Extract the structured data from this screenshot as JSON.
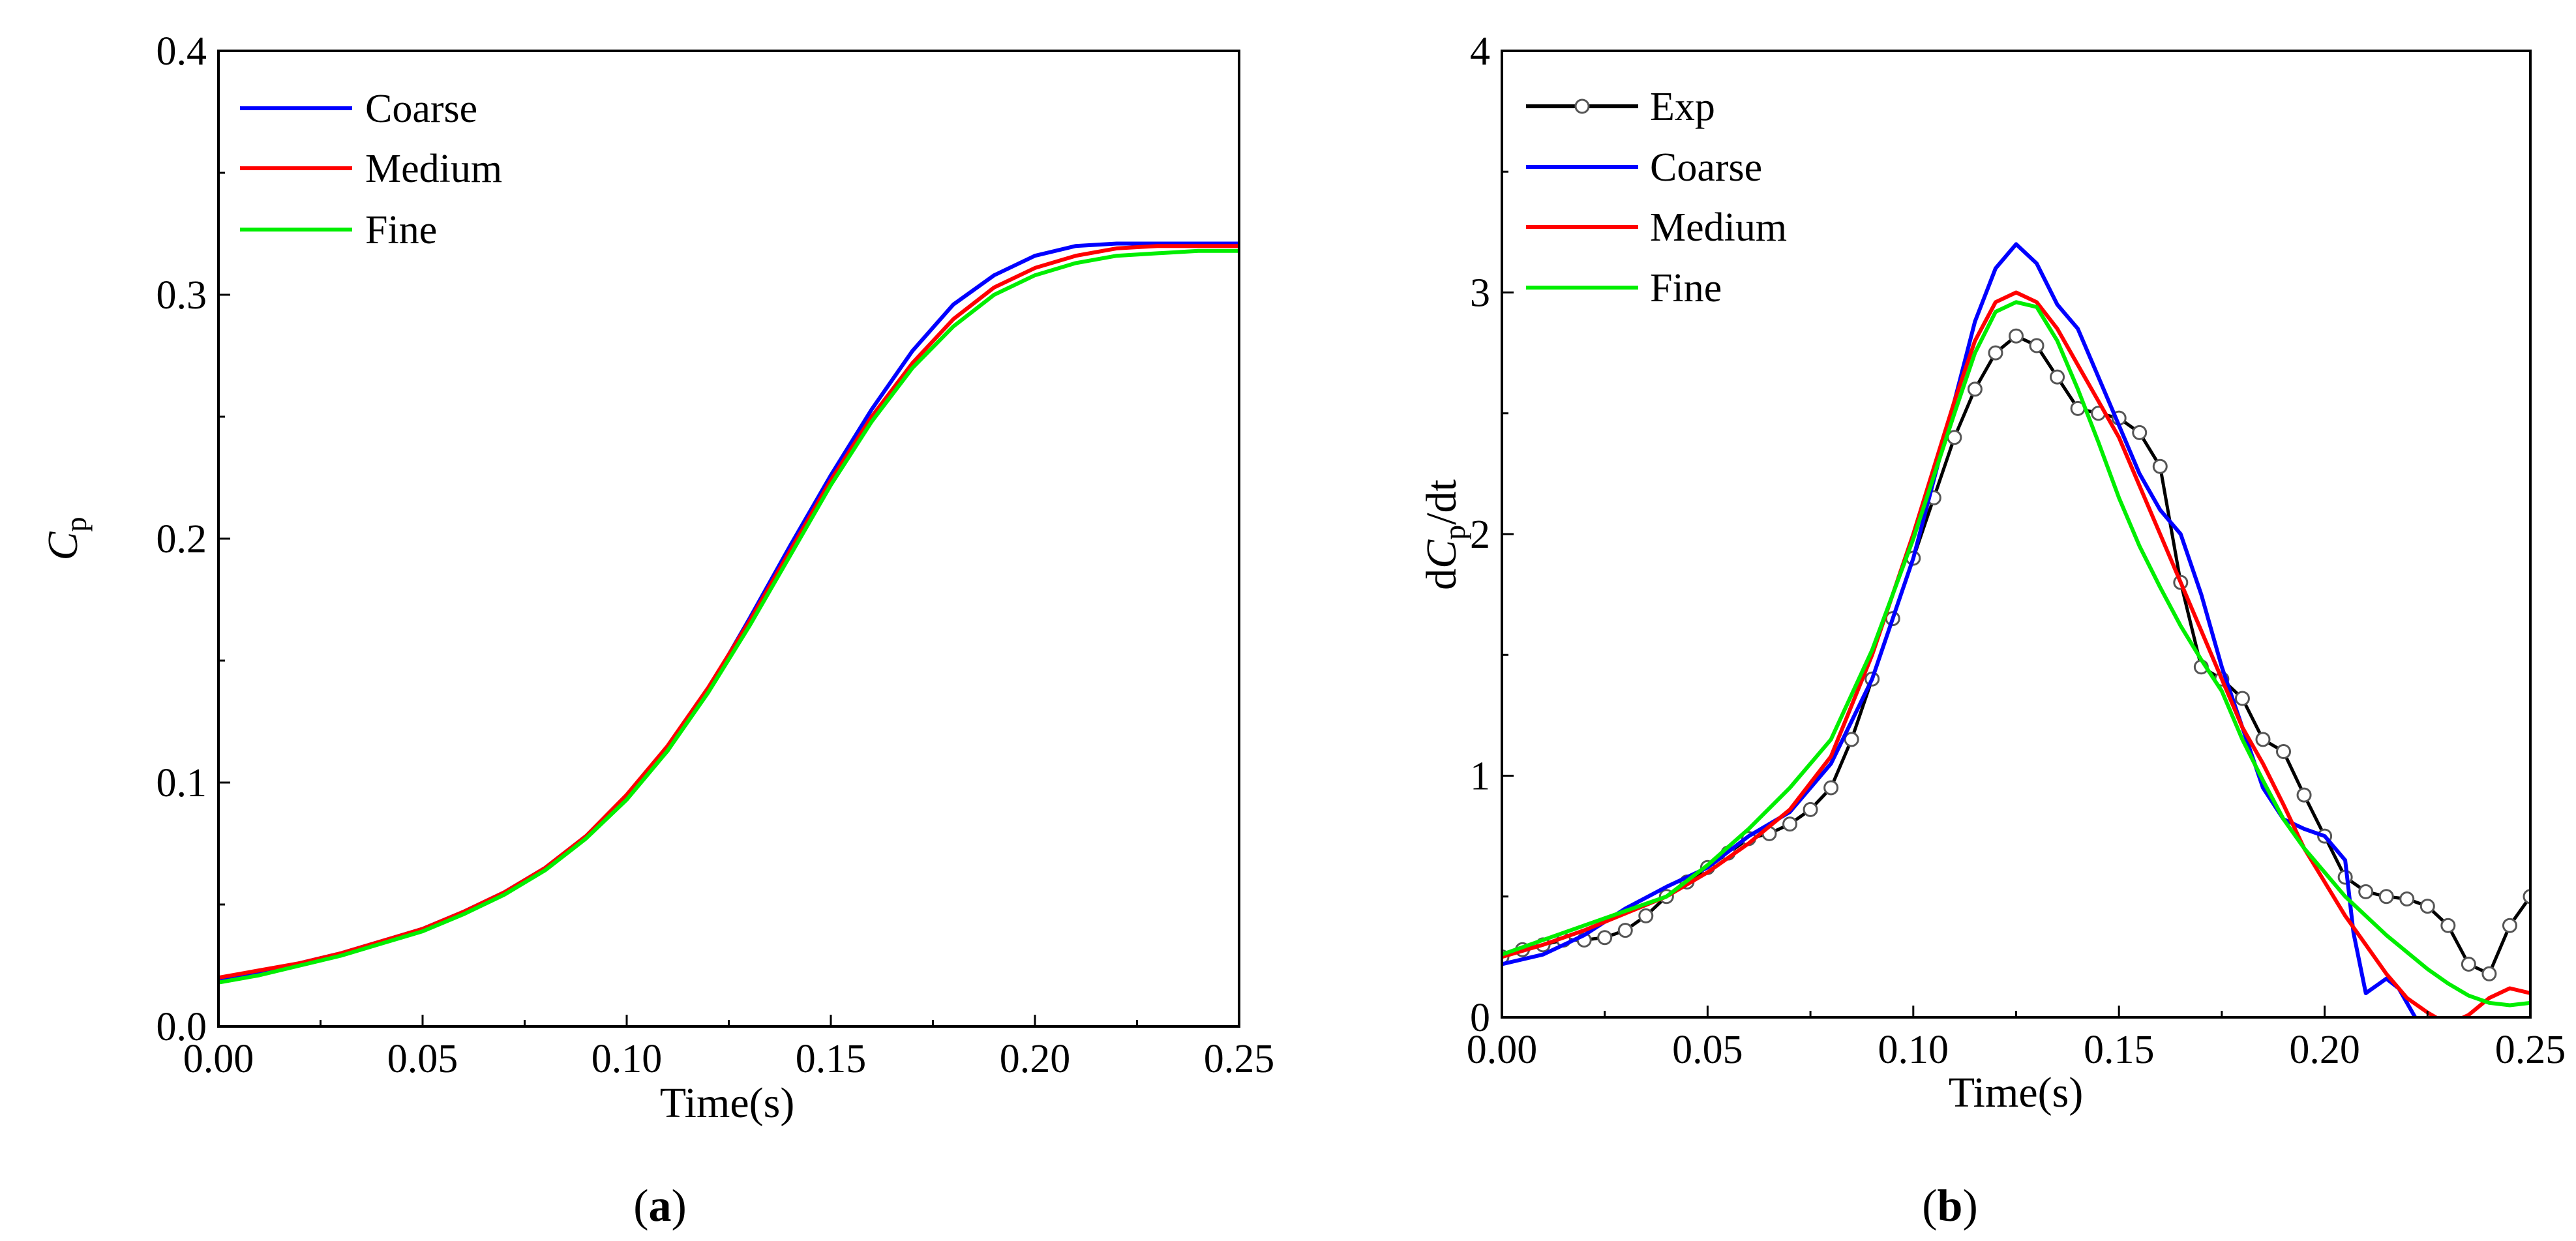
{
  "chart_data": [
    {
      "type": "line",
      "panel_label": {
        "open": "(",
        "letter": "a",
        "close": ")"
      },
      "xlabel": "Time(s)",
      "ylabel": {
        "main": "C",
        "sub": "p"
      },
      "xlim": [
        0,
        0.25
      ],
      "ylim": [
        0,
        0.4
      ],
      "xticks": [
        0,
        0.05,
        0.1,
        0.15,
        0.2,
        0.25
      ],
      "xtick_labels": [
        "0.00",
        "0.05",
        "0.10",
        "0.15",
        "0.20",
        "0.25"
      ],
      "yticks": [
        0,
        0.1,
        0.2,
        0.3,
        0.4
      ],
      "ytick_labels": [
        "0.0",
        "0.1",
        "0.2",
        "0.3",
        "0.4"
      ],
      "grid": false,
      "legend_position": "top-left",
      "series": [
        {
          "name": "Coarse",
          "color": "#0000ff",
          "x": [
            0,
            0.01,
            0.02,
            0.03,
            0.04,
            0.05,
            0.06,
            0.07,
            0.08,
            0.09,
            0.1,
            0.11,
            0.12,
            0.13,
            0.14,
            0.15,
            0.16,
            0.17,
            0.18,
            0.19,
            0.2,
            0.21,
            0.22,
            0.23,
            0.24,
            0.25
          ],
          "y": [
            0.019,
            0.022,
            0.026,
            0.03,
            0.035,
            0.04,
            0.047,
            0.055,
            0.065,
            0.078,
            0.094,
            0.113,
            0.138,
            0.167,
            0.197,
            0.226,
            0.253,
            0.277,
            0.296,
            0.308,
            0.316,
            0.32,
            0.321,
            0.321,
            0.321,
            0.321
          ]
        },
        {
          "name": "Medium",
          "color": "#ff0000",
          "x": [
            0,
            0.01,
            0.02,
            0.03,
            0.04,
            0.05,
            0.06,
            0.07,
            0.08,
            0.09,
            0.1,
            0.11,
            0.12,
            0.13,
            0.14,
            0.15,
            0.16,
            0.17,
            0.18,
            0.19,
            0.2,
            0.21,
            0.22,
            0.23,
            0.24,
            0.25
          ],
          "y": [
            0.02,
            0.023,
            0.026,
            0.03,
            0.035,
            0.04,
            0.047,
            0.055,
            0.065,
            0.078,
            0.095,
            0.115,
            0.139,
            0.166,
            0.195,
            0.224,
            0.25,
            0.272,
            0.29,
            0.303,
            0.311,
            0.316,
            0.319,
            0.32,
            0.32,
            0.32
          ]
        },
        {
          "name": "Fine",
          "color": "#00ee00",
          "x": [
            0,
            0.01,
            0.02,
            0.03,
            0.04,
            0.05,
            0.06,
            0.07,
            0.08,
            0.09,
            0.1,
            0.11,
            0.12,
            0.13,
            0.14,
            0.15,
            0.16,
            0.17,
            0.18,
            0.19,
            0.2,
            0.21,
            0.22,
            0.23,
            0.24,
            0.25
          ],
          "y": [
            0.018,
            0.021,
            0.025,
            0.029,
            0.034,
            0.039,
            0.046,
            0.054,
            0.064,
            0.077,
            0.093,
            0.113,
            0.137,
            0.164,
            0.193,
            0.222,
            0.248,
            0.27,
            0.287,
            0.3,
            0.308,
            0.313,
            0.316,
            0.317,
            0.318,
            0.318
          ]
        }
      ]
    },
    {
      "type": "line",
      "panel_label": {
        "open": "(",
        "letter": "b",
        "close": ")"
      },
      "xlabel": "Time(s)",
      "ylabel": {
        "pre": "d",
        "main": "C",
        "sub": "p",
        "post": "/dt"
      },
      "xlim": [
        0,
        0.25
      ],
      "ylim": [
        0,
        4
      ],
      "xticks": [
        0,
        0.05,
        0.1,
        0.15,
        0.2,
        0.25
      ],
      "xtick_labels": [
        "0.00",
        "0.05",
        "0.10",
        "0.15",
        "0.20",
        "0.25"
      ],
      "yticks": [
        0,
        1,
        2,
        3,
        4
      ],
      "ytick_labels": [
        "0",
        "1",
        "2",
        "3",
        "4"
      ],
      "grid": false,
      "legend_position": "top-left",
      "series": [
        {
          "name": "Exp",
          "color": "#000000",
          "marker": "open-circle",
          "x": [
            0,
            0.005,
            0.01,
            0.015,
            0.02,
            0.025,
            0.03,
            0.035,
            0.04,
            0.045,
            0.05,
            0.055,
            0.06,
            0.065,
            0.07,
            0.075,
            0.08,
            0.085,
            0.09,
            0.095,
            0.1,
            0.105,
            0.11,
            0.115,
            0.12,
            0.125,
            0.13,
            0.135,
            0.14,
            0.145,
            0.15,
            0.155,
            0.16,
            0.165,
            0.17,
            0.175,
            0.18,
            0.185,
            0.19,
            0.195,
            0.2,
            0.205,
            0.21,
            0.215,
            0.22,
            0.225,
            0.23,
            0.235,
            0.24,
            0.245,
            0.25
          ],
          "y": [
            0.25,
            0.28,
            0.3,
            0.32,
            0.32,
            0.33,
            0.36,
            0.42,
            0.5,
            0.56,
            0.62,
            0.68,
            0.74,
            0.76,
            0.8,
            0.86,
            0.95,
            1.15,
            1.4,
            1.65,
            1.9,
            2.15,
            2.4,
            2.6,
            2.75,
            2.82,
            2.78,
            2.65,
            2.52,
            2.5,
            2.48,
            2.42,
            2.28,
            1.8,
            1.45,
            1.4,
            1.32,
            1.15,
            1.1,
            0.92,
            0.75,
            0.58,
            0.52,
            0.5,
            0.49,
            0.46,
            0.38,
            0.22,
            0.18,
            0.38,
            0.5
          ]
        },
        {
          "name": "Coarse",
          "color": "#0000ff",
          "x": [
            0,
            0.01,
            0.02,
            0.03,
            0.04,
            0.05,
            0.06,
            0.07,
            0.08,
            0.09,
            0.1,
            0.11,
            0.115,
            0.12,
            0.125,
            0.13,
            0.135,
            0.14,
            0.145,
            0.15,
            0.155,
            0.16,
            0.165,
            0.17,
            0.175,
            0.18,
            0.185,
            0.19,
            0.195,
            0.2,
            0.205,
            0.207,
            0.21,
            0.215,
            0.218,
            0.222
          ],
          "y": [
            0.22,
            0.26,
            0.34,
            0.45,
            0.54,
            0.62,
            0.75,
            0.85,
            1.05,
            1.4,
            1.9,
            2.55,
            2.88,
            3.1,
            3.2,
            3.12,
            2.95,
            2.85,
            2.65,
            2.45,
            2.25,
            2.1,
            2.0,
            1.75,
            1.45,
            1.2,
            0.95,
            0.82,
            0.78,
            0.75,
            0.65,
            0.35,
            0.1,
            0.16,
            0.12,
            0.0
          ]
        },
        {
          "name": "Medium",
          "color": "#ff0000",
          "x": [
            0,
            0.01,
            0.02,
            0.03,
            0.04,
            0.05,
            0.06,
            0.07,
            0.08,
            0.09,
            0.1,
            0.11,
            0.115,
            0.12,
            0.125,
            0.13,
            0.135,
            0.14,
            0.145,
            0.15,
            0.155,
            0.16,
            0.165,
            0.17,
            0.175,
            0.18,
            0.185,
            0.19,
            0.195,
            0.2,
            0.205,
            0.21,
            0.215,
            0.22,
            0.225,
            0.23,
            0.235,
            0.24,
            0.245,
            0.25
          ],
          "y": [
            0.25,
            0.3,
            0.36,
            0.43,
            0.5,
            0.6,
            0.72,
            0.86,
            1.08,
            1.5,
            2.0,
            2.55,
            2.8,
            2.96,
            3.0,
            2.96,
            2.85,
            2.7,
            2.55,
            2.4,
            2.2,
            2.0,
            1.8,
            1.6,
            1.4,
            1.2,
            1.05,
            0.88,
            0.7,
            0.56,
            0.42,
            0.3,
            0.18,
            0.08,
            0.02,
            -0.03,
            0.01,
            0.08,
            0.12,
            0.1
          ]
        },
        {
          "name": "Fine",
          "color": "#00ee00",
          "x": [
            0,
            0.01,
            0.02,
            0.03,
            0.04,
            0.05,
            0.06,
            0.07,
            0.08,
            0.09,
            0.1,
            0.11,
            0.115,
            0.12,
            0.125,
            0.13,
            0.135,
            0.14,
            0.145,
            0.15,
            0.155,
            0.16,
            0.165,
            0.17,
            0.175,
            0.18,
            0.185,
            0.19,
            0.195,
            0.2,
            0.205,
            0.21,
            0.215,
            0.22,
            0.225,
            0.23,
            0.235,
            0.24,
            0.245,
            0.25
          ],
          "y": [
            0.26,
            0.32,
            0.38,
            0.44,
            0.5,
            0.63,
            0.78,
            0.95,
            1.15,
            1.52,
            1.98,
            2.5,
            2.75,
            2.92,
            2.96,
            2.94,
            2.8,
            2.6,
            2.38,
            2.15,
            1.95,
            1.78,
            1.62,
            1.48,
            1.35,
            1.15,
            0.98,
            0.82,
            0.7,
            0.6,
            0.5,
            0.42,
            0.34,
            0.27,
            0.2,
            0.14,
            0.09,
            0.06,
            0.05,
            0.06
          ]
        }
      ]
    }
  ]
}
